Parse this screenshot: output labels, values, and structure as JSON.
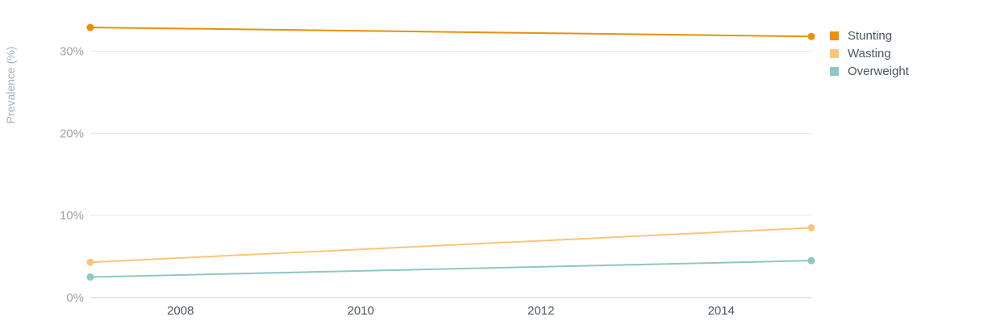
{
  "chart_data": {
    "type": "line",
    "title": "",
    "xlabel": "",
    "ylabel": "Prevalence (%)",
    "x": [
      2007,
      2015
    ],
    "xlim": [
      2007,
      2015
    ],
    "x_ticks": [
      2008,
      2010,
      2012,
      2014
    ],
    "x_tick_labels": [
      "2008",
      "2010",
      "2012",
      "2014"
    ],
    "ylim": [
      0,
      33
    ],
    "y_ticks": [
      0,
      10,
      20,
      30
    ],
    "y_tick_labels": [
      "0%",
      "10%",
      "20%",
      "30%"
    ],
    "grid": true,
    "legend_position": "top-right",
    "series": [
      {
        "name": "Stunting",
        "color": "#EC8F0B",
        "values": [
          32.9,
          31.8
        ]
      },
      {
        "name": "Wasting",
        "color": "#F9C57A",
        "values": [
          4.3,
          8.5
        ]
      },
      {
        "name": "Overweight",
        "color": "#8DC8C4",
        "values": [
          2.5,
          4.5
        ]
      }
    ]
  }
}
